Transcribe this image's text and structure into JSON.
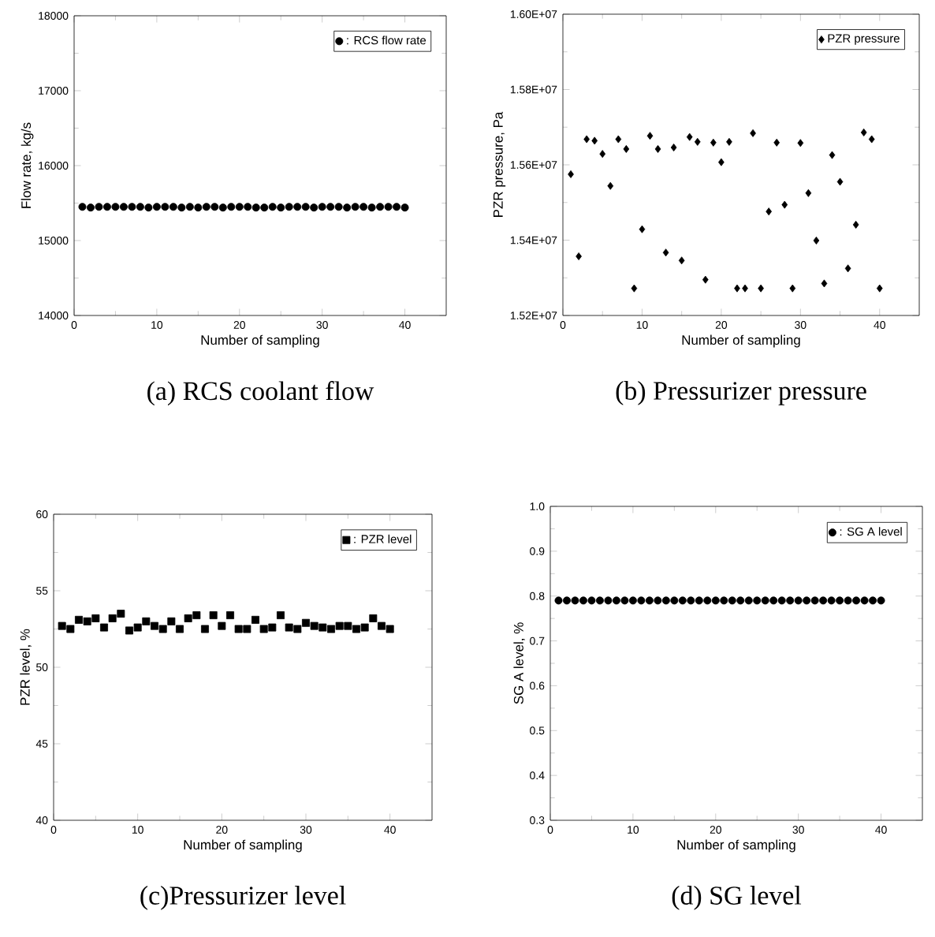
{
  "chart_data": [
    {
      "type": "scatter",
      "title": "(a)  RCS  coolant  flow",
      "xlabel": "Number of sampling",
      "ylabel": "Flow rate, kg/s",
      "marker": "circle",
      "legend": "top right",
      "x": [
        1,
        2,
        3,
        4,
        5,
        6,
        7,
        8,
        9,
        10,
        11,
        12,
        13,
        14,
        15,
        16,
        17,
        18,
        19,
        20,
        21,
        22,
        23,
        24,
        25,
        26,
        27,
        28,
        29,
        30,
        31,
        32,
        33,
        34,
        35,
        36,
        37,
        38,
        39,
        40
      ],
      "series": [
        {
          "name": ": RCS flow rate",
          "color": "#000000",
          "values": [
            15450,
            15440,
            15450,
            15450,
            15450,
            15450,
            15450,
            15450,
            15440,
            15450,
            15450,
            15450,
            15440,
            15450,
            15440,
            15450,
            15450,
            15440,
            15450,
            15450,
            15450,
            15440,
            15440,
            15450,
            15440,
            15450,
            15450,
            15450,
            15440,
            15450,
            15450,
            15450,
            15440,
            15450,
            15450,
            15440,
            15450,
            15450,
            15450,
            15440
          ]
        }
      ],
      "xlim": [
        0,
        45
      ],
      "xticks": [
        0,
        10,
        20,
        30,
        40
      ],
      "ylim": [
        14000,
        18000
      ],
      "yticks": [
        14000,
        15000,
        16000,
        17000,
        18000
      ]
    },
    {
      "type": "scatter",
      "title": "(b)  Pressurizer  pressure",
      "xlabel": "Number of sampling",
      "ylabel": "PZR pressure, Pa",
      "marker": "diamond",
      "legend": "top right",
      "x": [
        1,
        2,
        3,
        4,
        5,
        6,
        7,
        8,
        9,
        10,
        11,
        12,
        13,
        14,
        15,
        16,
        17,
        18,
        19,
        20,
        21,
        22,
        23,
        24,
        25,
        26,
        27,
        28,
        29,
        30,
        31,
        32,
        33,
        34,
        35,
        36,
        37,
        38,
        39,
        40
      ],
      "series": [
        {
          "name": "PZR pressure",
          "color": "#000000",
          "values": [
            15575000,
            15357000,
            15668000,
            15664000,
            15629000,
            15544000,
            15668000,
            15642000,
            15272000,
            15429000,
            15677000,
            15642000,
            15367000,
            15646000,
            15346000,
            15674000,
            15661000,
            15295000,
            15659000,
            15607000,
            15661000,
            15272000,
            15272000,
            15684000,
            15272000,
            15476000,
            15659000,
            15494000,
            15272000,
            15658000,
            15525000,
            15399000,
            15285000,
            15626000,
            15555000,
            15325000,
            15441000,
            15686000,
            15668000,
            15272000
          ]
        }
      ],
      "xlim": [
        0,
        45
      ],
      "xticks": [
        0,
        10,
        20,
        30,
        40
      ],
      "ylim": [
        15200000,
        16000000
      ],
      "yticks": [
        {
          "value": 15200000,
          "label": "1.52E+07"
        },
        {
          "value": 15400000,
          "label": "1.54E+07"
        },
        {
          "value": 15600000,
          "label": "1.56E+07"
        },
        {
          "value": 15800000,
          "label": "1.58E+07"
        },
        {
          "value": 16000000,
          "label": "1.60E+07"
        }
      ]
    },
    {
      "type": "scatter",
      "title": "(c)Pressurizer  level",
      "xlabel": "Number of sampling",
      "ylabel": "PZR level, %",
      "marker": "square",
      "legend": "top right",
      "x": [
        1,
        2,
        3,
        4,
        5,
        6,
        7,
        8,
        9,
        10,
        11,
        12,
        13,
        14,
        15,
        16,
        17,
        18,
        19,
        20,
        21,
        22,
        23,
        24,
        25,
        26,
        27,
        28,
        29,
        30,
        31,
        32,
        33,
        34,
        35,
        36,
        37,
        38,
        39,
        40
      ],
      "series": [
        {
          "name": ": PZR level",
          "color": "#000000",
          "values": [
            52.7,
            52.5,
            53.1,
            53.0,
            53.2,
            52.6,
            53.2,
            53.5,
            52.4,
            52.6,
            53.0,
            52.7,
            52.5,
            53.0,
            52.5,
            53.2,
            53.4,
            52.5,
            53.4,
            52.7,
            53.4,
            52.5,
            52.5,
            53.1,
            52.5,
            52.6,
            53.4,
            52.6,
            52.5,
            52.9,
            52.7,
            52.6,
            52.5,
            52.7,
            52.7,
            52.5,
            52.6,
            53.2,
            52.7,
            52.5
          ]
        }
      ],
      "xlim": [
        0,
        45
      ],
      "xticks": [
        0,
        10,
        20,
        30,
        40
      ],
      "ylim": [
        40,
        60
      ],
      "yticks": [
        40,
        45,
        50,
        55,
        60
      ]
    },
    {
      "type": "scatter",
      "title": "(d)  SG  level",
      "xlabel": "Number of sampling",
      "ylabel": "SG A level, %",
      "marker": "circle",
      "legend": "top right",
      "x": [
        1,
        2,
        3,
        4,
        5,
        6,
        7,
        8,
        9,
        10,
        11,
        12,
        13,
        14,
        15,
        16,
        17,
        18,
        19,
        20,
        21,
        22,
        23,
        24,
        25,
        26,
        27,
        28,
        29,
        30,
        31,
        32,
        33,
        34,
        35,
        36,
        37,
        38,
        39,
        40
      ],
      "series": [
        {
          "name": ": SG A level",
          "color": "#000000",
          "values": [
            0.79,
            0.79,
            0.79,
            0.79,
            0.79,
            0.79,
            0.79,
            0.79,
            0.79,
            0.79,
            0.79,
            0.79,
            0.79,
            0.79,
            0.79,
            0.79,
            0.79,
            0.79,
            0.79,
            0.79,
            0.79,
            0.79,
            0.79,
            0.79,
            0.79,
            0.79,
            0.79,
            0.79,
            0.79,
            0.79,
            0.79,
            0.79,
            0.79,
            0.79,
            0.79,
            0.79,
            0.79,
            0.79,
            0.79,
            0.79
          ]
        }
      ],
      "xlim": [
        0,
        45
      ],
      "xticks": [
        0,
        10,
        20,
        30,
        40
      ],
      "ylim": [
        0.3,
        1.0
      ],
      "yticks": [
        0.3,
        0.4,
        0.5,
        0.6,
        0.7,
        0.8,
        0.9,
        {
          "value": 1.0,
          "label": "1.0"
        }
      ]
    }
  ]
}
